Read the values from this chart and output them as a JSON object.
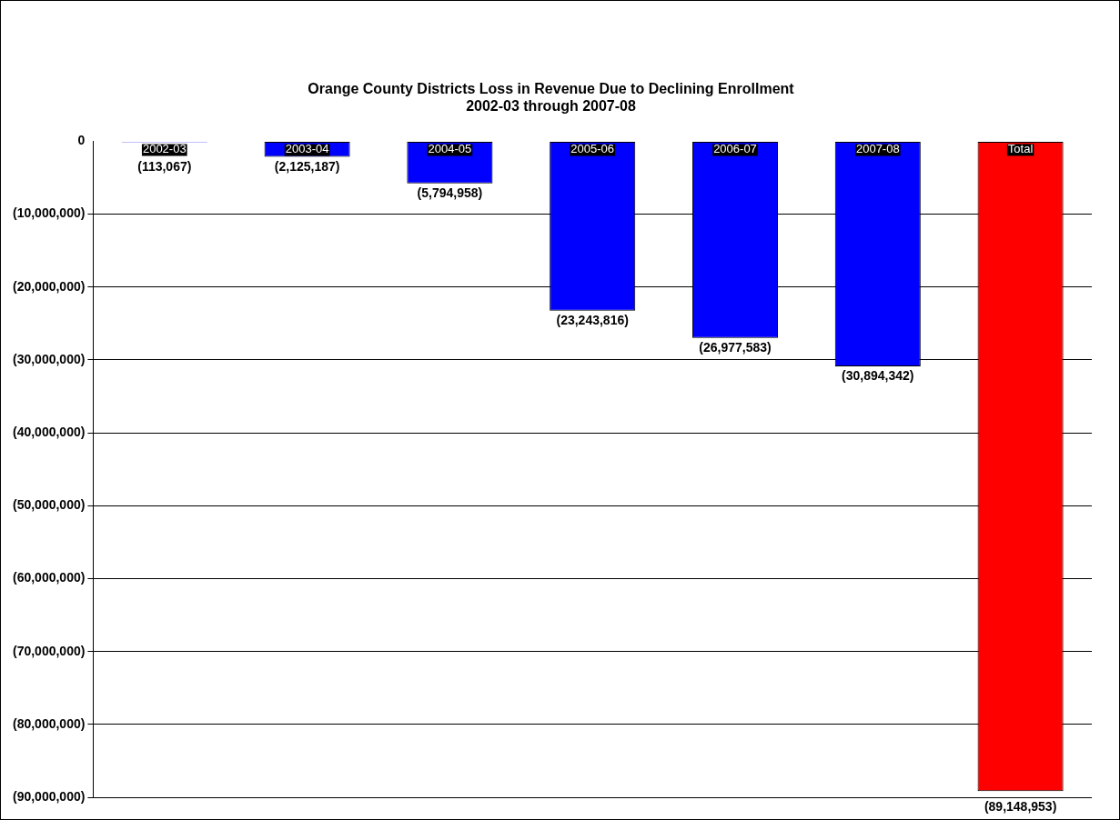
{
  "chart_data": {
    "type": "bar",
    "title": "Orange County Districts Loss in Revenue Due to Declining Enrollment\n2002-03 through 2007-08",
    "categories": [
      "2002-03",
      "2003-04",
      "2004-05",
      "2005-06",
      "2006-07",
      "2007-08",
      "Total"
    ],
    "values": [
      -113067,
      -2125187,
      -5794958,
      -23243816,
      -26977583,
      -30894342,
      -89148953
    ],
    "colors": [
      "#0000ff",
      "#0000ff",
      "#0000ff",
      "#0000ff",
      "#0000ff",
      "#0000ff",
      "#ff0000"
    ],
    "value_labels": [
      "(113,067)",
      "(2,125,187)",
      "(5,794,958)",
      "(23,243,816)",
      "(26,977,583)",
      "(30,894,342)",
      "(89,148,953)"
    ],
    "ylim": [
      -90000000,
      0
    ],
    "yticks": [
      0,
      {
        "value": -10000000,
        "label": "(10,000,000)"
      },
      {
        "value": -20000000,
        "label": "(20,000,000)"
      },
      {
        "value": -30000000,
        "label": "(30,000,000)"
      },
      {
        "value": -40000000,
        "label": "(40,000,000)"
      },
      {
        "value": -50000000,
        "label": "(50,000,000)"
      },
      {
        "value": -60000000,
        "label": "(60,000,000)"
      },
      {
        "value": -70000000,
        "label": "(70,000,000)"
      },
      {
        "value": -80000000,
        "label": "(80,000,000)"
      },
      {
        "value": -90000000,
        "label": "(90,000,000)"
      }
    ],
    "grid": "y",
    "legend": false
  }
}
